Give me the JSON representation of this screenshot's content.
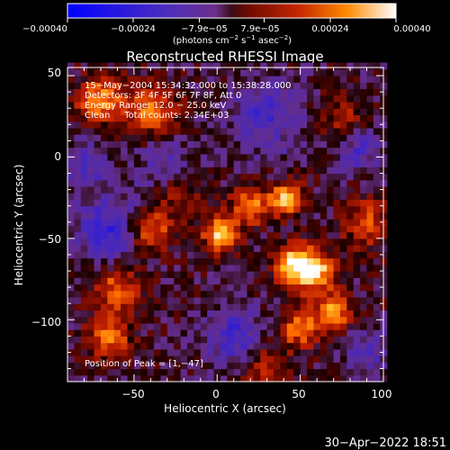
{
  "chart_data": {
    "type": "heatmap",
    "title": "Reconstructed RHESSI Image",
    "xlabel": "Heliocentric X (arcsec)",
    "ylabel": "Heliocentric Y (arcsec)",
    "xlim": [
      -90,
      100
    ],
    "ylim": [
      -138,
      55
    ],
    "x_ticks": [
      -50,
      0,
      50,
      100
    ],
    "y_ticks": [
      50,
      0,
      -50,
      -100
    ],
    "x_tick_labels": [
      "−50",
      "0",
      "50",
      "100"
    ],
    "y_tick_labels": [
      "50",
      "0",
      "−50",
      "−100"
    ],
    "colorbar": {
      "range": [
        -0.0004,
        0.0004
      ],
      "tick_labels": [
        "−0.00040",
        "−0.00024",
        "−7.9e−05",
        "7.9e−05",
        "0.00024",
        "0.00040"
      ],
      "units_text": "(photons cm",
      "units_exp1": "−2",
      "units_mid": " s",
      "units_exp2": "−1",
      "units_mid2": " asec",
      "units_exp3": "−2",
      "units_close": ")"
    },
    "annotations": [
      "15−May−2004 15:34:32.000 to 15:38:28.000",
      "Detectors: 3F 4F 5F 6F 7F 8F, Att 0",
      "Energy Range: 12.0 − 25.0 keV",
      "Clean     Total counts: 2.34E+03"
    ],
    "peak_label": "Position of Peak = [1,−47]",
    "peak": [
      1,
      -47
    ],
    "hot_spots": [
      {
        "x": 2,
        "y": -47,
        "v": 1.0,
        "r": 7
      },
      {
        "x": 58,
        "y": -70,
        "v": 1.0,
        "r": 9
      },
      {
        "x": 45,
        "y": -65,
        "v": 0.85,
        "r": 8
      },
      {
        "x": 42,
        "y": -25,
        "v": 0.9,
        "r": 7
      },
      {
        "x": 20,
        "y": -30,
        "v": 0.75,
        "r": 8
      },
      {
        "x": 70,
        "y": -95,
        "v": 0.75,
        "r": 8
      },
      {
        "x": 50,
        "y": -105,
        "v": 0.7,
        "r": 8
      },
      {
        "x": -40,
        "y": -45,
        "v": 0.7,
        "r": 9
      },
      {
        "x": -70,
        "y": 35,
        "v": 0.75,
        "r": 10
      },
      {
        "x": -40,
        "y": 30,
        "v": 0.7,
        "r": 10
      },
      {
        "x": -60,
        "y": -80,
        "v": 0.6,
        "r": 10
      },
      {
        "x": -65,
        "y": -110,
        "v": 0.65,
        "r": 9
      },
      {
        "x": 90,
        "y": -40,
        "v": 0.55,
        "r": 10
      },
      {
        "x": -25,
        "y": -20,
        "v": 0.55,
        "r": 10
      },
      {
        "x": 75,
        "y": 25,
        "v": 0.35,
        "r": 10
      },
      {
        "x": 30,
        "y": -130,
        "v": 0.45,
        "r": 10
      }
    ],
    "cold_spots": [
      {
        "x": -65,
        "y": -45,
        "v": -0.6,
        "r": 14
      },
      {
        "x": -30,
        "y": -10,
        "v": -0.45,
        "r": 12
      },
      {
        "x": 10,
        "y": -110,
        "v": -0.5,
        "r": 12
      },
      {
        "x": 30,
        "y": 25,
        "v": -0.45,
        "r": 15
      },
      {
        "x": 85,
        "y": 5,
        "v": -0.4,
        "r": 10
      },
      {
        "x": -80,
        "y": -5,
        "v": -0.4,
        "r": 10
      },
      {
        "x": 90,
        "y": -120,
        "v": -0.35,
        "r": 10
      }
    ]
  },
  "footer": {
    "date_stamp": "30−Apr−2022 18:51"
  }
}
